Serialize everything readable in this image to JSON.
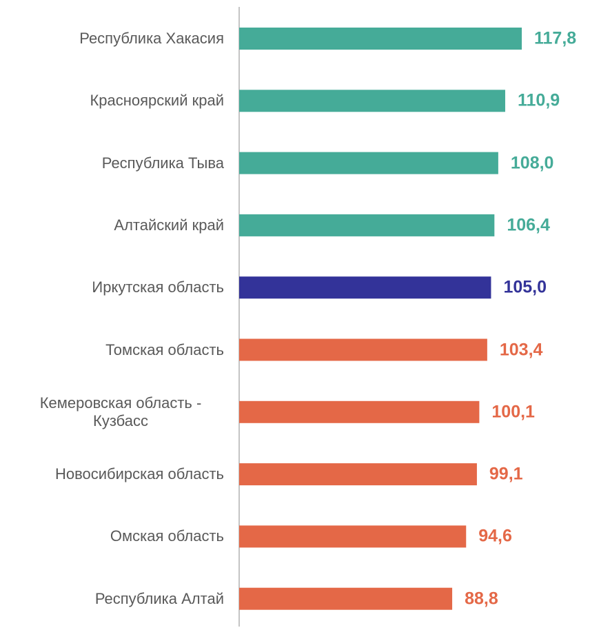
{
  "chart_data": {
    "type": "bar",
    "orientation": "horizontal",
    "categories": [
      "Республика Хакасия",
      "Красноярский край",
      "Республика Тыва",
      "Алтайский край",
      "Иркутская область",
      "Томская область",
      "Кемеровская область - Кузбасс",
      "Новосибирская область",
      "Омская область",
      "Республика Алтай"
    ],
    "values": [
      117.8,
      110.9,
      108.0,
      106.4,
      105.0,
      103.4,
      100.1,
      99.1,
      94.6,
      88.8
    ],
    "value_labels": [
      "117,8",
      "110,9",
      "108,0",
      "106,4",
      "105,0",
      "103,4",
      "100,1",
      "99,1",
      "94,6",
      "88,8"
    ],
    "colors": [
      "#45ab98",
      "#45ab98",
      "#45ab98",
      "#45ab98",
      "#333399",
      "#e46847",
      "#e46847",
      "#e46847",
      "#e46847",
      "#e46847"
    ]
  }
}
